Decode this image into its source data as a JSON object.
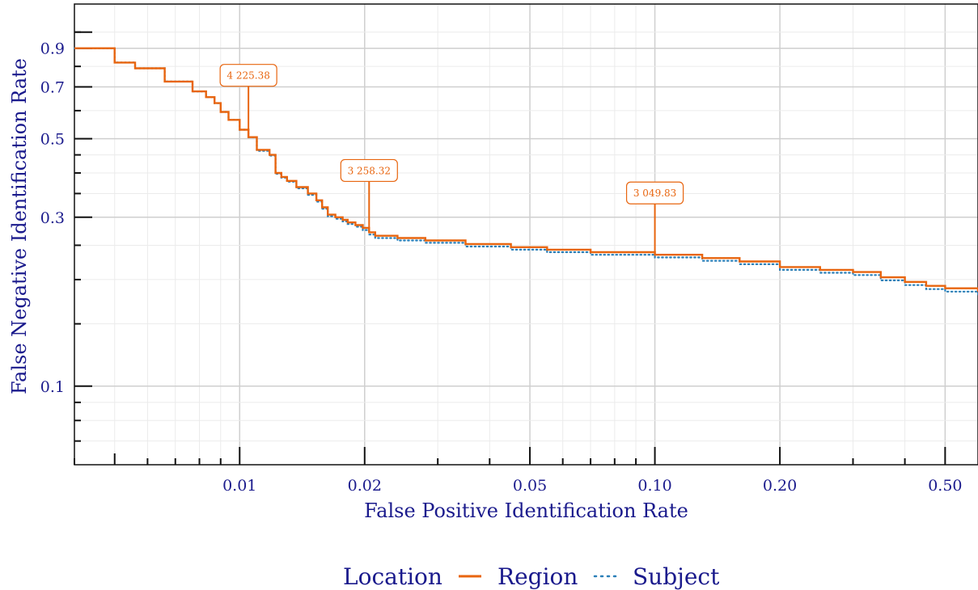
{
  "chart_data": {
    "type": "line",
    "title": "",
    "xlabel": "False Positive Identification Rate",
    "ylabel": "False Negative Identification Rate",
    "x_scale": "log",
    "y_scale": "log",
    "xlim": [
      0.004,
      0.6
    ],
    "ylim": [
      0.06,
      1.2
    ],
    "x_ticks": [
      0.01,
      0.02,
      0.05,
      0.1,
      0.2,
      0.5
    ],
    "x_tick_labels": [
      "0.01",
      "0.02",
      "0.05",
      "0.10",
      "0.20",
      "0.50"
    ],
    "y_ticks": [
      0.1,
      0.3,
      0.5,
      0.7,
      0.9
    ],
    "y_tick_labels": [
      "0.1",
      "0.3",
      "0.5",
      "0.7",
      "0.9"
    ],
    "grid": true,
    "legend": {
      "title": "Location",
      "placement": "bottom",
      "entries": [
        "Region",
        "Subject"
      ]
    },
    "colors": {
      "Region": "#e8650f",
      "Subject": "#2a7fb8"
    },
    "series": [
      {
        "name": "Region",
        "style": "solid",
        "x": [
          0.004,
          0.005,
          0.0056,
          0.0066,
          0.0077,
          0.0083,
          0.0087,
          0.009,
          0.0094,
          0.01,
          0.0105,
          0.011,
          0.0118,
          0.0122,
          0.0126,
          0.013,
          0.0137,
          0.0146,
          0.0153,
          0.0158,
          0.0163,
          0.017,
          0.0177,
          0.0182,
          0.019,
          0.0198,
          0.0205,
          0.0212,
          0.024,
          0.028,
          0.035,
          0.045,
          0.055,
          0.07,
          0.1,
          0.13,
          0.16,
          0.2,
          0.25,
          0.3,
          0.35,
          0.4,
          0.45,
          0.5,
          0.6
        ],
        "y": [
          0.9,
          0.82,
          0.79,
          0.725,
          0.68,
          0.655,
          0.63,
          0.595,
          0.565,
          0.53,
          0.505,
          0.465,
          0.45,
          0.4,
          0.39,
          0.38,
          0.365,
          0.35,
          0.335,
          0.32,
          0.305,
          0.3,
          0.295,
          0.29,
          0.285,
          0.28,
          0.272,
          0.266,
          0.262,
          0.258,
          0.252,
          0.247,
          0.243,
          0.239,
          0.235,
          0.23,
          0.225,
          0.217,
          0.213,
          0.21,
          0.203,
          0.197,
          0.192,
          0.189,
          0.185
        ]
      },
      {
        "name": "Subject",
        "style": "dotted",
        "x": [
          0.004,
          0.005,
          0.0056,
          0.0066,
          0.0077,
          0.0083,
          0.0087,
          0.009,
          0.0094,
          0.01,
          0.0105,
          0.011,
          0.0118,
          0.0122,
          0.0126,
          0.013,
          0.0137,
          0.0146,
          0.0153,
          0.0158,
          0.0163,
          0.017,
          0.0177,
          0.0182,
          0.019,
          0.0198,
          0.0205,
          0.0212,
          0.024,
          0.028,
          0.035,
          0.045,
          0.055,
          0.07,
          0.1,
          0.13,
          0.16,
          0.2,
          0.25,
          0.3,
          0.35,
          0.4,
          0.45,
          0.5,
          0.6
        ],
        "y": [
          0.9,
          0.82,
          0.79,
          0.725,
          0.68,
          0.655,
          0.63,
          0.595,
          0.565,
          0.53,
          0.505,
          0.462,
          0.448,
          0.398,
          0.388,
          0.378,
          0.362,
          0.347,
          0.332,
          0.317,
          0.302,
          0.297,
          0.292,
          0.287,
          0.282,
          0.276,
          0.268,
          0.262,
          0.258,
          0.254,
          0.248,
          0.243,
          0.239,
          0.235,
          0.231,
          0.226,
          0.221,
          0.213,
          0.209,
          0.206,
          0.199,
          0.193,
          0.188,
          0.185,
          0.181
        ]
      }
    ],
    "annotations": [
      {
        "text": "4 225.38",
        "x": 0.0105,
        "y": 0.505
      },
      {
        "text": "3 258.32",
        "x": 0.0205,
        "y": 0.272
      },
      {
        "text": "3 049.83",
        "x": 0.1,
        "y": 0.235
      }
    ]
  }
}
